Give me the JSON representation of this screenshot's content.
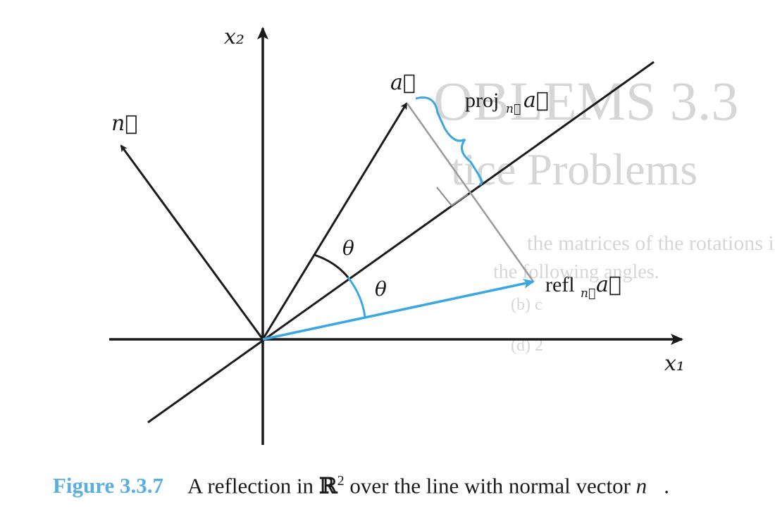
{
  "figure": {
    "labels": {
      "x1_axis": "x₁",
      "x2_axis": "x₂",
      "vector_a": "a⃗",
      "vector_n": "n⃗",
      "theta_upper": "θ",
      "theta_lower": "θ",
      "proj_main": "proj",
      "proj_sub": "n⃗",
      "proj_arg": "a⃗",
      "refl_main": "refl",
      "refl_sub": "n⃗",
      "refl_arg": "a⃗"
    },
    "colors": {
      "axis": "#1a1a1a",
      "vector": "#1a1a1a",
      "reflection": "#3aa8e0",
      "brace": "#3aa8e0",
      "projection_segment": "#9a9a9a",
      "caption_label": "#5aaee0"
    }
  },
  "background_bleed": {
    "line1": "OBLEMS 3.3",
    "line2": "tice Problems",
    "line3": "the matrices of the rotations in the plane",
    "line4": "the following angles.",
    "line5": "(b) c",
    "line6": "(d) 2"
  },
  "caption": {
    "label": "Figure 3.3.7",
    "text_before": "A reflection in ",
    "field": "ℝ",
    "power": "2",
    "text_after": " over the line with normal vector ",
    "vector": "n⃗",
    "end": "."
  }
}
